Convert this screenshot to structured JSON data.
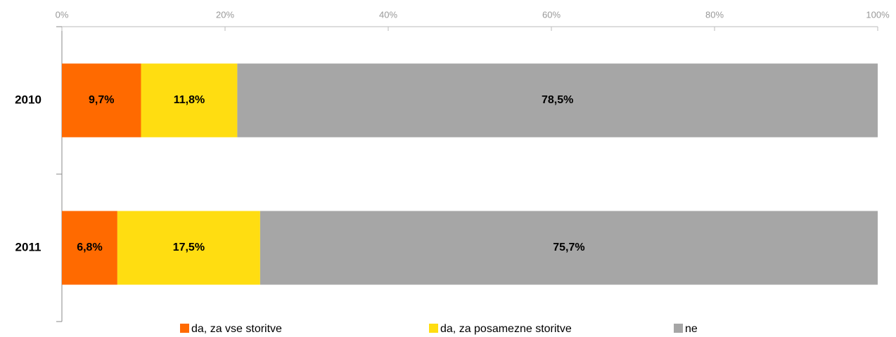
{
  "chart_data": {
    "type": "stacked_bar_horizontal",
    "categories": [
      "2010",
      "2011"
    ],
    "series": [
      {
        "name": "da, za vse storitve",
        "color": "#ff6a00",
        "values": [
          9.7,
          6.8
        ],
        "value_labels": [
          "9,7%",
          "6,8%"
        ]
      },
      {
        "name": "da, za posamezne storitve",
        "color": "#ffdd11",
        "values": [
          11.8,
          17.5
        ],
        "value_labels": [
          "11,8%",
          "17,5%"
        ]
      },
      {
        "name": "ne",
        "color": "#a6a6a6",
        "values": [
          78.5,
          75.7
        ],
        "value_labels": [
          "78,5%",
          "75,7%"
        ]
      }
    ],
    "xlim": [
      0,
      100
    ],
    "xticks": [
      {
        "value": 0,
        "label": "0%"
      },
      {
        "value": 20,
        "label": "20%"
      },
      {
        "value": 40,
        "label": "40%"
      },
      {
        "value": 60,
        "label": "60%"
      },
      {
        "value": 80,
        "label": "80%"
      },
      {
        "value": 100,
        "label": "100%"
      }
    ],
    "legend": "bottom"
  }
}
